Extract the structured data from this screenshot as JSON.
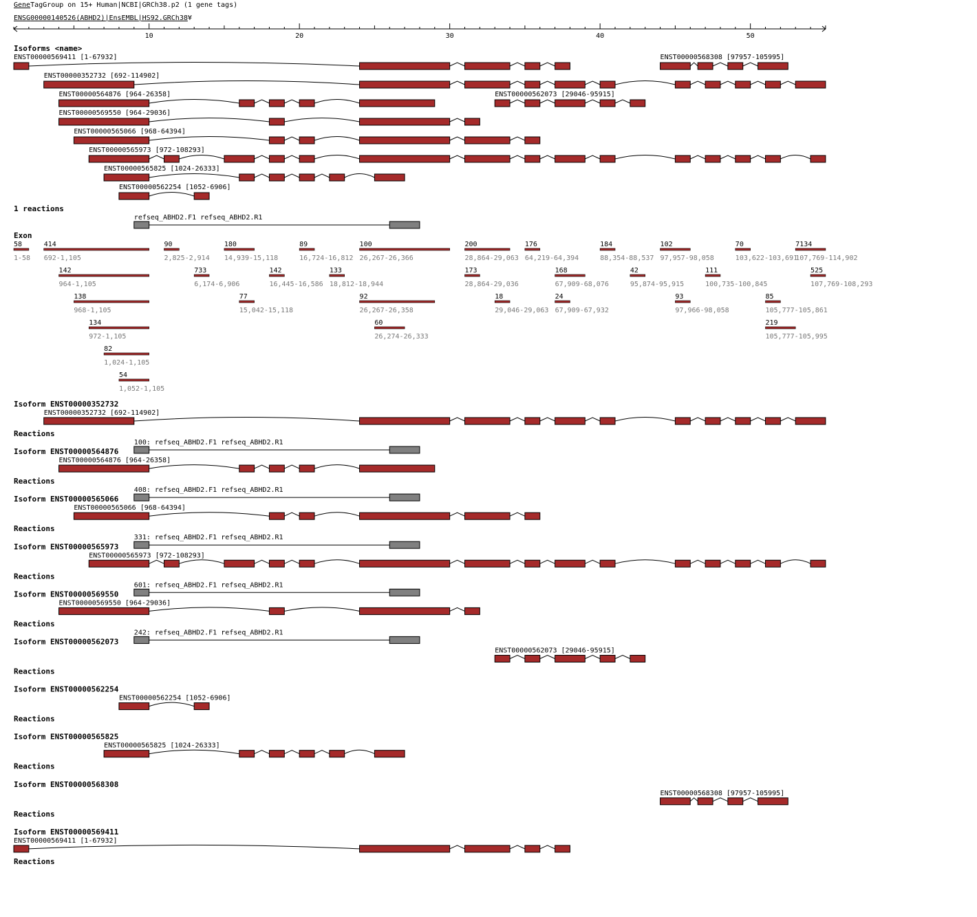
{
  "header": {
    "group_link": "Gene",
    "group_rest": "TagGroup on 15+ Human|NCBI|GRCh38.p2 (1 gene tags)",
    "gene_link": "ENSG",
    "gene_rest": "00000140526(ABHD2)|EnsEMBL|HS92.GRCh38",
    "gene_marker": "¥"
  },
  "colors": {
    "exon": "#a52a2a",
    "reaction": "#808080",
    "intron": "#000000",
    "range_text": "#777777"
  },
  "ruler": {
    "ticks": [
      "10",
      "20",
      "30",
      "40",
      "50"
    ],
    "min": 1,
    "max": 55
  },
  "sections": {
    "isoforms": "Isoforms <name>",
    "reactions_count": "1 reactions",
    "exon": "Exon",
    "reactions": "Reactions"
  },
  "overview_isoforms": [
    {
      "label": "ENST00000569411 [1-67932]",
      "blocks": [
        [
          1,
          2
        ],
        [
          24,
          30
        ],
        [
          31,
          34
        ],
        [
          35,
          36
        ],
        [
          37,
          38
        ]
      ]
    },
    {
      "label": "ENST00000568308 [97957-105995]",
      "blocks": [
        [
          44,
          46
        ],
        [
          46.5,
          47.5
        ],
        [
          48.5,
          49.5
        ],
        [
          50.5,
          52.5
        ]
      ]
    },
    {
      "label": "ENST00000352732 [692-114902]",
      "blocks": [
        [
          3,
          9
        ],
        [
          24,
          30
        ],
        [
          31,
          34
        ],
        [
          35,
          36
        ],
        [
          37,
          39
        ],
        [
          40,
          41
        ],
        [
          45,
          46
        ],
        [
          47,
          48
        ],
        [
          49,
          50
        ],
        [
          51,
          52
        ],
        [
          53,
          55
        ]
      ]
    },
    {
      "label": "ENST00000564876 [964-26358]",
      "blocks": [
        [
          4,
          10
        ],
        [
          16,
          17
        ],
        [
          18,
          19
        ],
        [
          20,
          21
        ],
        [
          24,
          29
        ]
      ]
    },
    {
      "label": "ENST00000562073 [29046-95915]",
      "blocks": [
        [
          33,
          34
        ],
        [
          35,
          36
        ],
        [
          37,
          39
        ],
        [
          40,
          41
        ],
        [
          42,
          43
        ]
      ]
    },
    {
      "label": "ENST00000569550 [964-29036]",
      "blocks": [
        [
          4,
          10
        ],
        [
          18,
          19
        ],
        [
          24,
          30
        ],
        [
          31,
          32
        ]
      ]
    },
    {
      "label": "ENST00000565066 [968-64394]",
      "blocks": [
        [
          5,
          10
        ],
        [
          18,
          19
        ],
        [
          20,
          21
        ],
        [
          24,
          30
        ],
        [
          31,
          34
        ],
        [
          35,
          36
        ]
      ]
    },
    {
      "label": "ENST00000565973 [972-108293]",
      "blocks": [
        [
          6,
          10
        ],
        [
          11,
          12
        ],
        [
          15,
          17
        ],
        [
          18,
          19
        ],
        [
          20,
          21
        ],
        [
          24,
          30
        ],
        [
          31,
          34
        ],
        [
          35,
          36
        ],
        [
          37,
          39
        ],
        [
          40,
          41
        ],
        [
          45,
          46
        ],
        [
          47,
          48
        ],
        [
          49,
          50
        ],
        [
          51,
          52
        ],
        [
          54,
          55
        ]
      ]
    },
    {
      "label": "ENST00000565825 [1024-26333]",
      "blocks": [
        [
          7,
          10
        ],
        [
          16,
          17
        ],
        [
          18,
          19
        ],
        [
          20,
          21
        ],
        [
          22,
          23
        ],
        [
          25,
          27
        ]
      ]
    },
    {
      "label": "ENST00000562254 [1052-6906]",
      "blocks": [
        [
          8,
          10
        ],
        [
          13,
          14
        ]
      ]
    }
  ],
  "overview_reaction": {
    "label": "refseq_ABHD2.F1 refseq_ABHD2.R1",
    "blocks": [
      [
        9,
        10
      ],
      [
        26,
        28
      ]
    ]
  },
  "exons": [
    [
      {
        "len": "58",
        "range": "1-58",
        "span": [
          1,
          2
        ]
      },
      {
        "len": "414",
        "range": "692-1,105",
        "span": [
          3,
          10
        ]
      },
      {
        "len": "90",
        "range": "2,825-2,914",
        "span": [
          11,
          12
        ]
      },
      {
        "len": "180",
        "range": "14,939-15,118",
        "span": [
          15,
          17
        ]
      },
      {
        "len": "89",
        "range": "16,724-16,812",
        "span": [
          20,
          21
        ]
      },
      {
        "len": "100",
        "range": "26,267-26,366",
        "span": [
          24,
          30
        ]
      },
      {
        "len": "200",
        "range": "28,864-29,063",
        "span": [
          31,
          34
        ]
      },
      {
        "len": "176",
        "range": "64,219-64,394",
        "span": [
          35,
          36
        ]
      },
      {
        "len": "184",
        "range": "88,354-88,537",
        "span": [
          40,
          41
        ]
      },
      {
        "len": "102",
        "range": "97,957-98,058",
        "span": [
          44,
          46
        ]
      },
      {
        "len": "70",
        "range": "103,622-103,691",
        "span": [
          49,
          50
        ]
      },
      {
        "len": "7134",
        "range": "107,769-114,902",
        "span": [
          53,
          55
        ]
      }
    ],
    [
      {
        "len": "142",
        "range": "964-1,105",
        "span": [
          4,
          10
        ]
      },
      {
        "len": "733",
        "range": "6,174-6,906",
        "span": [
          13,
          14
        ]
      },
      {
        "len": "142",
        "range": "16,445-16,586",
        "span": [
          18,
          19
        ]
      },
      {
        "len": "133",
        "range": "18,812-18,944",
        "span": [
          22,
          23
        ]
      },
      {
        "len": "173",
        "range": "28,864-29,036",
        "span": [
          31,
          32
        ]
      },
      {
        "len": "168",
        "range": "67,909-68,076",
        "span": [
          37,
          39
        ]
      },
      {
        "len": "42",
        "range": "95,874-95,915",
        "span": [
          42,
          43
        ]
      },
      {
        "len": "111",
        "range": "100,735-100,845",
        "span": [
          47,
          48
        ]
      },
      {
        "len": "525",
        "range": "107,769-108,293",
        "span": [
          54,
          55
        ]
      }
    ],
    [
      {
        "len": "138",
        "range": "968-1,105",
        "span": [
          5,
          10
        ]
      },
      {
        "len": "77",
        "range": "15,042-15,118",
        "span": [
          16,
          17
        ]
      },
      {
        "len": "92",
        "range": "26,267-26,358",
        "span": [
          24,
          29
        ]
      },
      {
        "len": "18",
        "range": "29,046-29,063",
        "span": [
          33,
          34
        ]
      },
      {
        "len": "24",
        "range": "67,909-67,932",
        "span": [
          37,
          38
        ]
      },
      {
        "len": "93",
        "range": "97,966-98,058",
        "span": [
          45,
          46
        ]
      },
      {
        "len": "85",
        "range": "105,777-105,861",
        "span": [
          51,
          52
        ]
      }
    ],
    [
      {
        "len": "134",
        "range": "972-1,105",
        "span": [
          6,
          10
        ]
      },
      {
        "len": "60",
        "range": "26,274-26,333",
        "span": [
          25,
          27
        ]
      },
      {
        "len": "219",
        "range": "105,777-105,995",
        "span": [
          51,
          53
        ]
      }
    ],
    [
      {
        "len": "82",
        "range": "1,024-1,105",
        "span": [
          7,
          10
        ]
      }
    ],
    [
      {
        "len": "54",
        "range": "1,052-1,105",
        "span": [
          8,
          10
        ]
      }
    ]
  ],
  "detail_isoforms": [
    {
      "title": "Isoform ENST00000352732",
      "isoform": 2,
      "reaction": "100: refseq_ABHD2.F1 refseq_ABHD2.R1"
    },
    {
      "title": "Isoform ENST00000564876",
      "isoform": 3,
      "reaction": "408: refseq_ABHD2.F1 refseq_ABHD2.R1"
    },
    {
      "title": "Isoform ENST00000565066",
      "isoform": 6,
      "reaction": "331: refseq_ABHD2.F1 refseq_ABHD2.R1"
    },
    {
      "title": "Isoform ENST00000565973",
      "isoform": 7,
      "reaction": "601: refseq_ABHD2.F1 refseq_ABHD2.R1"
    },
    {
      "title": "Isoform ENST00000569550",
      "isoform": 5,
      "reaction": "242: refseq_ABHD2.F1 refseq_ABHD2.R1"
    },
    {
      "title": "Isoform ENST00000562073",
      "isoform": 4,
      "reaction": ""
    },
    {
      "title": "Isoform ENST00000562254",
      "isoform": 9,
      "reaction": ""
    },
    {
      "title": "Isoform ENST00000565825",
      "isoform": 8,
      "reaction": ""
    },
    {
      "title": "Isoform ENST00000568308",
      "isoform": 1,
      "reaction": ""
    },
    {
      "title": "Isoform ENST00000569411",
      "isoform": 0,
      "reaction": ""
    }
  ]
}
